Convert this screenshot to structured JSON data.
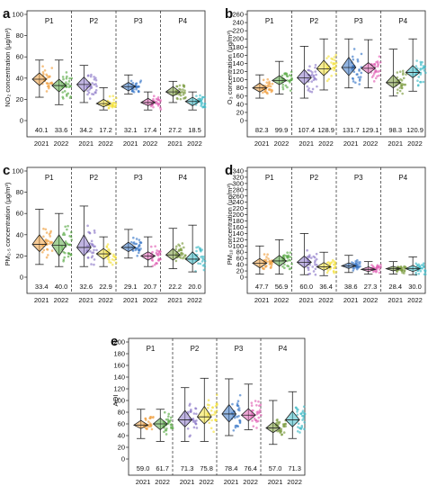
{
  "chart_data": [
    {
      "type": "violin",
      "panel": "a",
      "ylabel": "NO₂ concentration (μg/m³)",
      "ylim": [
        0,
        100
      ],
      "yticks": [
        0,
        20,
        40,
        60,
        80,
        100
      ],
      "periods": [
        "P1",
        "P2",
        "P3",
        "P4"
      ],
      "years": [
        "2021",
        "2022"
      ],
      "groups": [
        {
          "period": "P1",
          "year": "2021",
          "mean": 40.1,
          "min": 22,
          "q1": 33,
          "median": 39,
          "q3": 45,
          "max": 57,
          "color": "#f0a040",
          "label": "40.1"
        },
        {
          "period": "P1",
          "year": "2022",
          "mean": 33.6,
          "min": 15,
          "q1": 27,
          "median": 33,
          "q3": 39,
          "max": 57,
          "color": "#5aaa46",
          "label": "33.6"
        },
        {
          "period": "P2",
          "year": "2021",
          "mean": 34.2,
          "min": 17,
          "q1": 27,
          "median": 34,
          "q3": 41,
          "max": 52,
          "color": "#8c78c8",
          "label": "34.2"
        },
        {
          "period": "P2",
          "year": "2022",
          "mean": 17.2,
          "min": 10,
          "q1": 13,
          "median": 16,
          "q3": 20,
          "max": 31,
          "color": "#f4e23c",
          "label": "17.2"
        },
        {
          "period": "P3",
          "year": "2021",
          "mean": 32.1,
          "min": 25,
          "q1": 28,
          "median": 32,
          "q3": 36,
          "max": 43,
          "color": "#3a78c8",
          "label": "32.1"
        },
        {
          "period": "P3",
          "year": "2022",
          "mean": 17.4,
          "min": 10,
          "q1": 14,
          "median": 17,
          "q3": 21,
          "max": 27,
          "color": "#e060b4",
          "label": "17.4"
        },
        {
          "period": "P4",
          "year": "2021",
          "mean": 27.2,
          "min": 17,
          "q1": 23,
          "median": 27,
          "q3": 32,
          "max": 37,
          "color": "#7a9a3c",
          "label": "27.2"
        },
        {
          "period": "P4",
          "year": "2022",
          "mean": 18.5,
          "min": 10,
          "q1": 14,
          "median": 18,
          "q3": 22,
          "max": 27,
          "color": "#40bcc8",
          "label": "18.5"
        }
      ]
    },
    {
      "type": "violin",
      "panel": "b",
      "ylabel": "O₃ concentration (μg/m³)",
      "ylim": [
        0,
        260
      ],
      "yticks": [
        0,
        20,
        40,
        60,
        80,
        100,
        120,
        140,
        160,
        180,
        200,
        220,
        240,
        260
      ],
      "periods": [
        "P1",
        "P2",
        "P3",
        "P4"
      ],
      "years": [
        "2021",
        "2022"
      ],
      "groups": [
        {
          "period": "P1",
          "year": "2021",
          "mean": 82.3,
          "min": 55,
          "q1": 70,
          "median": 80,
          "q3": 92,
          "max": 112,
          "color": "#f0a040",
          "label": "82.3"
        },
        {
          "period": "P1",
          "year": "2022",
          "mean": 99.9,
          "min": 65,
          "q1": 88,
          "median": 98,
          "q3": 110,
          "max": 145,
          "color": "#5aaa46",
          "label": "99.9"
        },
        {
          "period": "P2",
          "year": "2021",
          "mean": 107.4,
          "min": 55,
          "q1": 88,
          "median": 105,
          "q3": 125,
          "max": 182,
          "color": "#8c78c8",
          "label": "107.4"
        },
        {
          "period": "P2",
          "year": "2022",
          "mean": 128.9,
          "min": 75,
          "q1": 110,
          "median": 127,
          "q3": 148,
          "max": 200,
          "color": "#f4e23c",
          "label": "128.9"
        },
        {
          "period": "P3",
          "year": "2021",
          "mean": 131.7,
          "min": 80,
          "q1": 110,
          "median": 130,
          "q3": 155,
          "max": 200,
          "color": "#3a78c8",
          "label": "131.7"
        },
        {
          "period": "P3",
          "year": "2022",
          "mean": 129.1,
          "min": 80,
          "q1": 115,
          "median": 128,
          "q3": 142,
          "max": 198,
          "color": "#e060b4",
          "label": "129.1"
        },
        {
          "period": "P4",
          "year": "2021",
          "mean": 98.3,
          "min": 60,
          "q1": 80,
          "median": 93,
          "q3": 112,
          "max": 175,
          "color": "#7a9a3c",
          "label": "98.3"
        },
        {
          "period": "P4",
          "year": "2022",
          "mean": 120.9,
          "min": 72,
          "q1": 105,
          "median": 118,
          "q3": 135,
          "max": 200,
          "color": "#40bcc8",
          "label": "120.9"
        }
      ]
    },
    {
      "type": "violin",
      "panel": "c",
      "ylabel": "PM₂.₅ concentration (μg/m³)",
      "ylim": [
        0,
        100
      ],
      "yticks": [
        0,
        20,
        40,
        60,
        80,
        100
      ],
      "periods": [
        "P1",
        "P2",
        "P3",
        "P4"
      ],
      "years": [
        "2021",
        "2022"
      ],
      "groups": [
        {
          "period": "P1",
          "year": "2021",
          "mean": 33.4,
          "min": 12,
          "q1": 24,
          "median": 31,
          "q3": 40,
          "max": 64,
          "color": "#f0a040",
          "label": "33.4"
        },
        {
          "period": "P1",
          "year": "2022",
          "mean": 40.0,
          "min": 10,
          "q1": 20,
          "median": 30,
          "q3": 40,
          "max": 60,
          "color": "#5aaa46",
          "label": "40.0"
        },
        {
          "period": "P2",
          "year": "2021",
          "mean": 32.6,
          "min": 10,
          "q1": 20,
          "median": 28,
          "q3": 40,
          "max": 67,
          "color": "#8c78c8",
          "label": "32.6"
        },
        {
          "period": "P2",
          "year": "2022",
          "mean": 22.9,
          "min": 10,
          "q1": 17,
          "median": 22,
          "q3": 27,
          "max": 38,
          "color": "#f4e23c",
          "label": "22.9"
        },
        {
          "period": "P3",
          "year": "2021",
          "mean": 29.1,
          "min": 18,
          "q1": 24,
          "median": 28,
          "q3": 33,
          "max": 45,
          "color": "#3a78c8",
          "label": "29.1"
        },
        {
          "period": "P3",
          "year": "2022",
          "mean": 20.7,
          "min": 10,
          "q1": 16,
          "median": 20,
          "q3": 24,
          "max": 38,
          "color": "#e060b4",
          "label": "20.7"
        },
        {
          "period": "P4",
          "year": "2021",
          "mean": 22.2,
          "min": 8,
          "q1": 16,
          "median": 21,
          "q3": 27,
          "max": 46,
          "color": "#7a9a3c",
          "label": "22.2"
        },
        {
          "period": "P4",
          "year": "2022",
          "mean": 20.0,
          "min": 5,
          "q1": 12,
          "median": 17,
          "q3": 24,
          "max": 49,
          "color": "#40bcc8",
          "label": "20.0"
        }
      ]
    },
    {
      "type": "violin",
      "panel": "d",
      "ylabel": "PM₁₀ concentration (μg/m³)",
      "ylim": [
        0,
        340
      ],
      "yticks": [
        0,
        20,
        40,
        60,
        80,
        100,
        120,
        140,
        160,
        180,
        200,
        220,
        240,
        260,
        280,
        300,
        320,
        340
      ],
      "periods": [
        "P1",
        "P2",
        "P3",
        "P4"
      ],
      "years": [
        "2021",
        "2022"
      ],
      "groups": [
        {
          "period": "P1",
          "year": "2021",
          "mean": 47.7,
          "min": 10,
          "q1": 30,
          "median": 45,
          "q3": 60,
          "max": 100,
          "color": "#f0a040",
          "label": "47.7"
        },
        {
          "period": "P1",
          "year": "2022",
          "mean": 56.9,
          "min": 10,
          "q1": 35,
          "median": 52,
          "q3": 70,
          "max": 120,
          "color": "#5aaa46",
          "label": "56.9"
        },
        {
          "period": "P2",
          "year": "2021",
          "mean": 60.0,
          "min": 8,
          "q1": 30,
          "median": 48,
          "q3": 68,
          "max": 140,
          "color": "#8c78c8",
          "label": "60.0"
        },
        {
          "period": "P2",
          "year": "2022",
          "mean": 36.4,
          "min": 5,
          "q1": 22,
          "median": 33,
          "q3": 47,
          "max": 80,
          "color": "#f4e23c",
          "label": "36.4"
        },
        {
          "period": "P3",
          "year": "2021",
          "mean": 38.6,
          "min": 15,
          "q1": 28,
          "median": 36,
          "q3": 46,
          "max": 70,
          "color": "#3a78c8",
          "label": "38.6"
        },
        {
          "period": "P3",
          "year": "2022",
          "mean": 27.3,
          "min": 10,
          "q1": 18,
          "median": 25,
          "q3": 33,
          "max": 50,
          "color": "#e060b4",
          "label": "27.3"
        },
        {
          "period": "P4",
          "year": "2021",
          "mean": 28.4,
          "min": 10,
          "q1": 20,
          "median": 27,
          "q3": 35,
          "max": 50,
          "color": "#7a9a3c",
          "label": "28.4"
        },
        {
          "period": "P4",
          "year": "2022",
          "mean": 30.0,
          "min": 8,
          "q1": 18,
          "median": 27,
          "q3": 38,
          "max": 65,
          "color": "#40bcc8",
          "label": "30.0"
        }
      ]
    },
    {
      "type": "violin",
      "panel": "e",
      "ylabel": "AQI",
      "ylim": [
        0,
        200
      ],
      "yticks": [
        0,
        20,
        40,
        60,
        80,
        100,
        120,
        140,
        160,
        180,
        200
      ],
      "periods": [
        "P1",
        "P2",
        "P3",
        "P4"
      ],
      "years": [
        "2021",
        "2022"
      ],
      "groups": [
        {
          "period": "P1",
          "year": "2021",
          "mean": 59.0,
          "min": 35,
          "q1": 52,
          "median": 58,
          "q3": 66,
          "max": 85,
          "color": "#f0a040",
          "label": "59.0"
        },
        {
          "period": "P1",
          "year": "2022",
          "mean": 61.7,
          "min": 30,
          "q1": 50,
          "median": 60,
          "q3": 70,
          "max": 85,
          "color": "#5aaa46",
          "label": "61.7"
        },
        {
          "period": "P2",
          "year": "2021",
          "mean": 71.3,
          "min": 30,
          "q1": 55,
          "median": 67,
          "q3": 83,
          "max": 122,
          "color": "#8c78c8",
          "label": "71.3"
        },
        {
          "period": "P2",
          "year": "2022",
          "mean": 75.8,
          "min": 30,
          "q1": 60,
          "median": 72,
          "q3": 90,
          "max": 138,
          "color": "#f4e23c",
          "label": "75.8"
        },
        {
          "period": "P3",
          "year": "2021",
          "mean": 78.4,
          "min": 40,
          "q1": 63,
          "median": 77,
          "q3": 93,
          "max": 137,
          "color": "#3a78c8",
          "label": "78.4"
        },
        {
          "period": "P3",
          "year": "2022",
          "mean": 76.4,
          "min": 50,
          "q1": 65,
          "median": 75,
          "q3": 86,
          "max": 128,
          "color": "#e060b4",
          "label": "76.4"
        },
        {
          "period": "P4",
          "year": "2021",
          "mean": 57.0,
          "min": 25,
          "q1": 45,
          "median": 53,
          "q3": 63,
          "max": 100,
          "color": "#7a9a3c",
          "label": "57.0"
        },
        {
          "period": "P4",
          "year": "2022",
          "mean": 71.3,
          "min": 35,
          "q1": 55,
          "median": 67,
          "q3": 82,
          "max": 115,
          "color": "#40bcc8",
          "label": "71.3"
        }
      ]
    }
  ]
}
